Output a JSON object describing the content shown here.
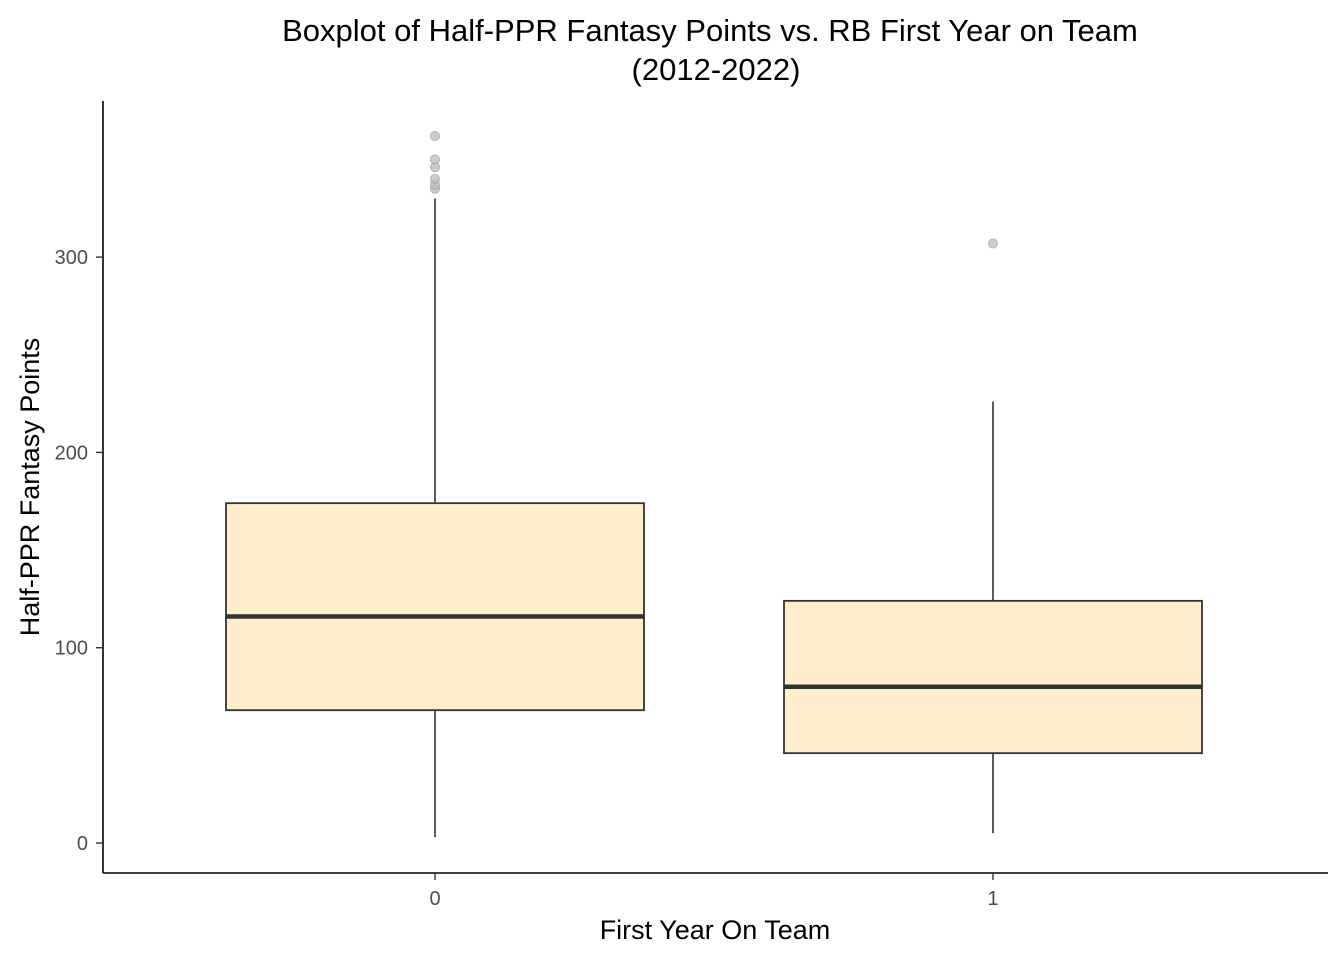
{
  "chart_data": {
    "type": "boxplot",
    "title": "Boxplot of Half-PPR Fantasy Points vs. RB First Year on Team",
    "subtitle": "(2012-2022)",
    "xlabel": "First Year On Team",
    "ylabel": "Half-PPR Fantasy Points",
    "categories": [
      "0",
      "1"
    ],
    "ylim": [
      -15,
      378
    ],
    "y_ticks": [
      0,
      100,
      200,
      300
    ],
    "y_tick_labels": [
      "0",
      "100",
      "200",
      "300"
    ],
    "grid": false,
    "legend": "none",
    "boxes": [
      {
        "category": "0",
        "whisker_low": 3,
        "q1": 68,
        "median": 116,
        "q3": 174,
        "whisker_high": 330,
        "outliers": [
          335,
          337,
          340,
          346,
          350,
          362
        ]
      },
      {
        "category": "1",
        "whisker_low": 5,
        "q1": 46,
        "median": 80,
        "q3": 124,
        "whisker_high": 226,
        "outliers": [
          307
        ]
      }
    ],
    "colors": {
      "box_fill": "#FFEECC",
      "box_stroke": "#333333",
      "median": "#333333",
      "outlier": "#BBBBBB",
      "axis": "#000000"
    }
  }
}
